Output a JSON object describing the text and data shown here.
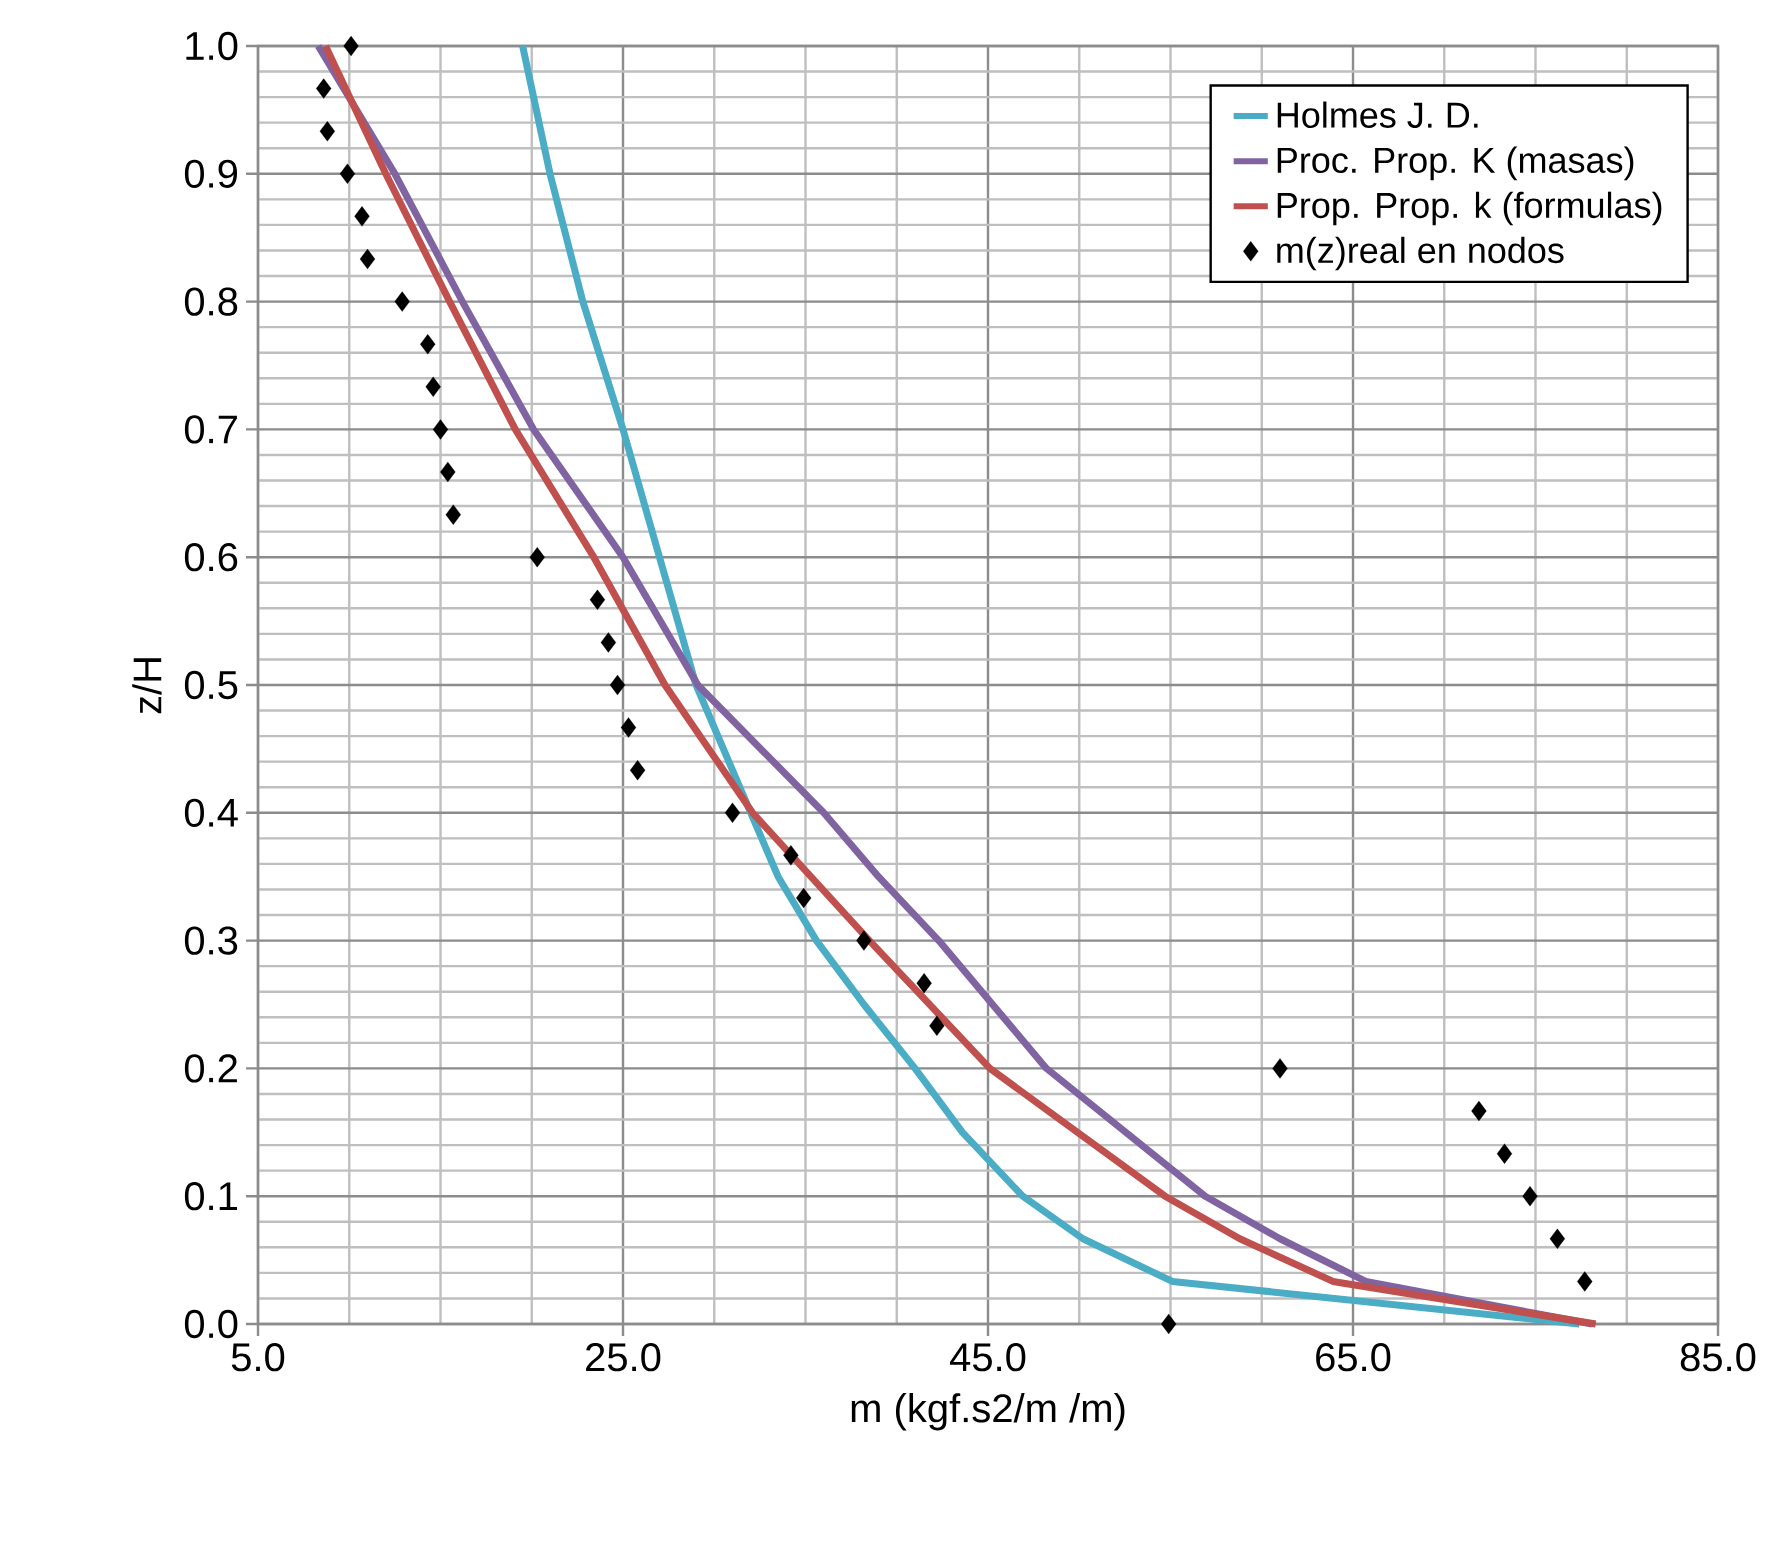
{
  "chart_data": {
    "type": "line",
    "xlabel": "m (kgf.s2/m /m)",
    "ylabel": "z/H",
    "xlim": [
      5,
      85
    ],
    "ylim": [
      0,
      1
    ],
    "xticks": [
      {
        "value": 5,
        "label": "5.0"
      },
      {
        "value": 25,
        "label": "25.0"
      },
      {
        "value": 45,
        "label": "45.0"
      },
      {
        "value": 65,
        "label": "65.0"
      },
      {
        "value": 85,
        "label": "85.0"
      }
    ],
    "yticks": [
      {
        "value": 0,
        "label": "0.0"
      },
      {
        "value": 0.1,
        "label": "0.1"
      },
      {
        "value": 0.2,
        "label": "0.2"
      },
      {
        "value": 0.3,
        "label": "0.3"
      },
      {
        "value": 0.4,
        "label": "0.4"
      },
      {
        "value": 0.5,
        "label": "0.5"
      },
      {
        "value": 0.6,
        "label": "0.6"
      },
      {
        "value": 0.7,
        "label": "0.7"
      },
      {
        "value": 0.8,
        "label": "0.8"
      },
      {
        "value": 0.9,
        "label": "0.9"
      },
      {
        "value": 1.0,
        "label": "1.0"
      }
    ],
    "grid": true,
    "legend": "top right",
    "series": [
      {
        "name": "Holmes J. D.",
        "color": "#4bacc6",
        "x": [
          77.4,
          55.1,
          50.2,
          46.9,
          43.6,
          41.0,
          38.2,
          35.6,
          33.5,
          32.0,
          29.0,
          27.0,
          25.0,
          22.8,
          21.0,
          19.5
        ],
        "values": [
          0,
          0.0333,
          0.0667,
          0.1,
          0.15,
          0.2,
          0.25,
          0.3,
          0.35,
          0.4,
          0.5,
          0.6,
          0.7,
          0.8,
          0.9,
          1.0
        ]
      },
      {
        "name": "Proc. Prop. K (masas)",
        "color": "#8064a2",
        "x": [
          78.1,
          65.7,
          61.0,
          56.9,
          48.2,
          42.3,
          39.0,
          36.0,
          29.1,
          25.0,
          20.1,
          16.2,
          12.5,
          8.3
        ],
        "values": [
          0,
          0.0333,
          0.0667,
          0.1,
          0.2,
          0.3,
          0.35,
          0.4,
          0.5,
          0.6,
          0.7,
          0.8,
          0.9,
          1.0
        ]
      },
      {
        "name": "Prop. Prop. k (formulas)",
        "color": "#c0504d",
        "x": [
          78.3,
          63.9,
          58.8,
          54.7,
          45.1,
          38.5,
          32.1,
          27.3,
          23.4,
          19.1,
          15.5,
          12.0,
          8.7
        ],
        "values": [
          0,
          0.0333,
          0.0667,
          0.1,
          0.2,
          0.3,
          0.4,
          0.5,
          0.6,
          0.7,
          0.8,
          0.9,
          1.0
        ]
      },
      {
        "name": "m(z)real en nodos",
        "type": "scatter",
        "marker": "diamond",
        "color": "#000000",
        "x": [
          54.9,
          77.7,
          76.2,
          74.7,
          73.3,
          71.9,
          61.0,
          42.2,
          41.5,
          38.2,
          34.9,
          34.2,
          31.0,
          25.8,
          25.3,
          24.7,
          24.2,
          23.6,
          20.3,
          15.7,
          15.4,
          15.0,
          14.6,
          14.3,
          12.9,
          11.0,
          10.7,
          9.9,
          8.8,
          8.6,
          10.1
        ],
        "values": [
          0,
          0.0333,
          0.0667,
          0.1,
          0.1333,
          0.1667,
          0.2,
          0.2333,
          0.2667,
          0.3,
          0.3333,
          0.3667,
          0.4,
          0.4333,
          0.4667,
          0.5,
          0.5333,
          0.5667,
          0.6,
          0.6333,
          0.6667,
          0.7,
          0.7333,
          0.7667,
          0.8,
          0.8333,
          0.8667,
          0.9,
          0.9333,
          0.9667,
          1.0
        ]
      }
    ]
  }
}
